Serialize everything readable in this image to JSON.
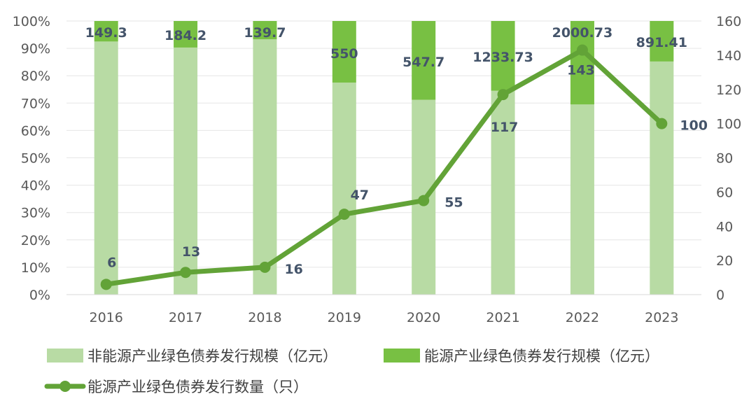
{
  "chart_data": {
    "type": "bar",
    "title": "",
    "categories": [
      "2016",
      "2017",
      "2018",
      "2019",
      "2020",
      "2021",
      "2022",
      "2023"
    ],
    "stacking": "percent",
    "series": [
      {
        "name": "非能源产业绿色债券发行规模（亿元）",
        "kind": "bar",
        "axis": "left",
        "color": "#b8dba4",
        "share_percent": [
          92.5,
          90.3,
          93.3,
          77.5,
          71.2,
          74.5,
          69.5,
          85.2
        ]
      },
      {
        "name": "能源产业绿色债券发行规模（亿元）",
        "kind": "bar",
        "axis": "left",
        "color": "#78c043",
        "share_percent": [
          7.5,
          9.7,
          6.7,
          22.5,
          28.8,
          25.5,
          30.5,
          14.8
        ],
        "value_labels": [
          "149.3",
          "184.2",
          "139.7",
          "550",
          "547.7",
          "1233.73",
          "2000.73",
          "891.41"
        ]
      },
      {
        "name": "能源产业绿色债券发行数量（只）",
        "kind": "line",
        "axis": "right",
        "color": "#62a337",
        "values": [
          6,
          13,
          16,
          47,
          55,
          117,
          143,
          100
        ],
        "value_labels": [
          "6",
          "13",
          "16",
          "47",
          "55",
          "117",
          "143",
          "100"
        ]
      }
    ],
    "left_axis": {
      "ylim": [
        0,
        100
      ],
      "ticks": [
        "0%",
        "10%",
        "20%",
        "30%",
        "40%",
        "50%",
        "60%",
        "70%",
        "80%",
        "90%",
        "100%"
      ]
    },
    "right_axis": {
      "ylim": [
        0,
        160
      ],
      "ticks": [
        "0",
        "20",
        "40",
        "60",
        "80",
        "100",
        "120",
        "140",
        "160"
      ]
    },
    "grid": true,
    "legend_position": "bottom-left"
  }
}
